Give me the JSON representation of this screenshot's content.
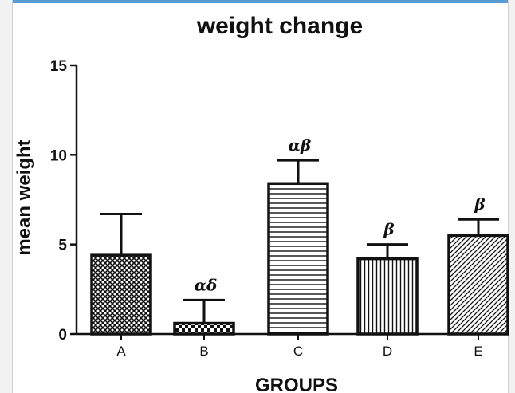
{
  "chart_data": {
    "type": "bar",
    "title": "weight change",
    "xlabel": "GROUPS",
    "ylabel": "mean weight",
    "ylim": [
      0,
      15
    ],
    "yticks": [
      "0",
      "5",
      "10",
      "15"
    ],
    "categories": [
      "A",
      "B",
      "C",
      "D",
      "E"
    ],
    "values": [
      4.4,
      0.6,
      8.4,
      4.2,
      5.5
    ],
    "error_upper": [
      6.7,
      1.9,
      9.7,
      5.0,
      6.4
    ],
    "annotations": [
      "",
      "αδ",
      "αβ",
      "β",
      "β"
    ],
    "patterns": [
      "crosshatch",
      "checker",
      "horizontal-lines",
      "vertical-lines",
      "diagonal-lines"
    ],
    "legend": false,
    "grid": false
  }
}
